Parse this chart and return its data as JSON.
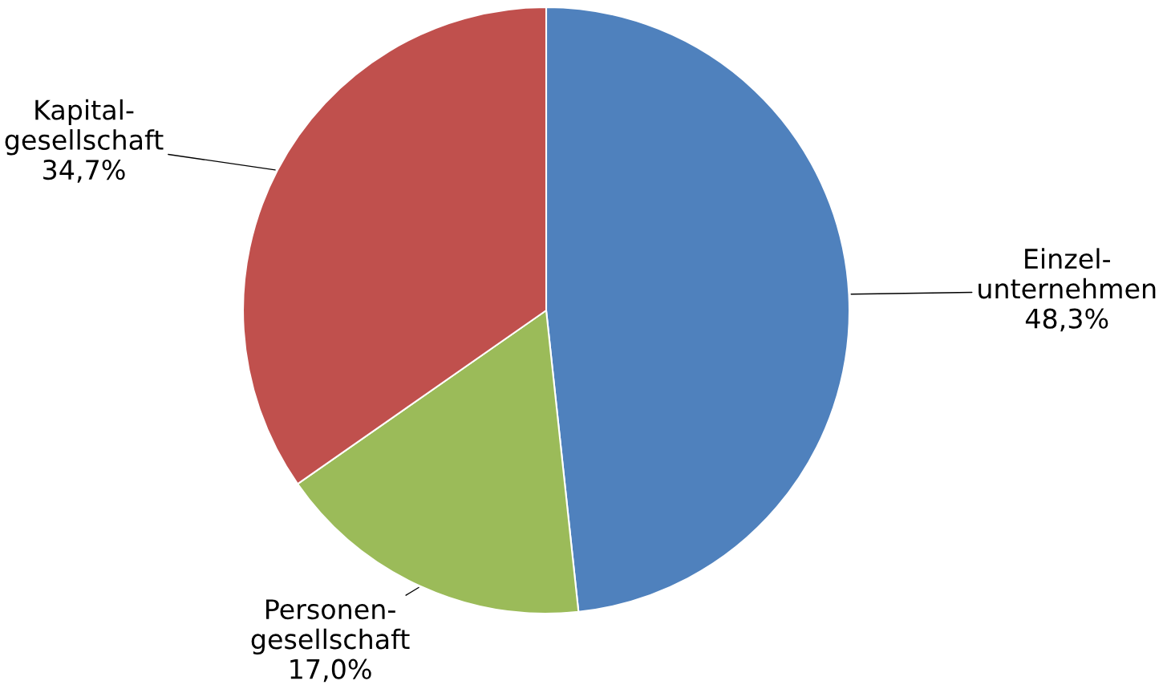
{
  "chart_data": {
    "type": "pie",
    "categories": [
      "Einzel-\nunternehmen",
      "Personen-\ngesellschaft",
      "Kapital-\ngesellschaft"
    ],
    "values": [
      48.3,
      17.0,
      34.7
    ],
    "value_labels": [
      "48,3%",
      "17,0%",
      "34,7%"
    ],
    "colors": [
      "#4f81bd",
      "#9bbb59",
      "#c0504d"
    ]
  }
}
